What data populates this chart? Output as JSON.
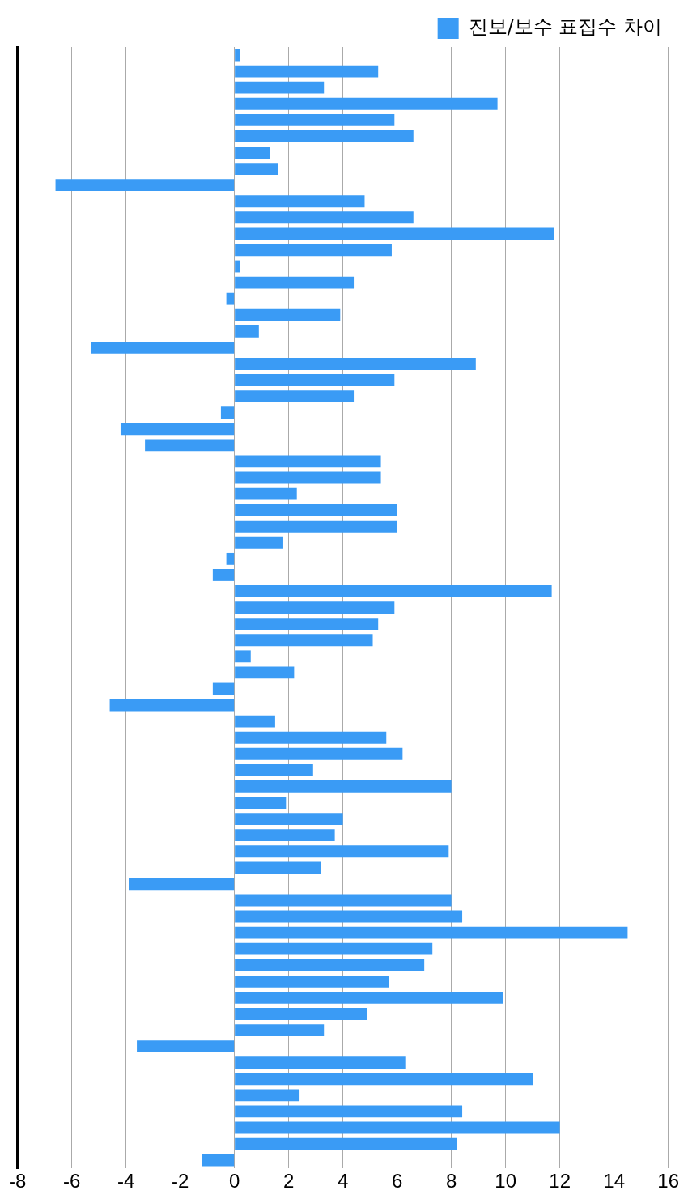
{
  "chart_data": {
    "type": "bar",
    "orientation": "horizontal",
    "categories": [
      null,
      null,
      null,
      null,
      null,
      null,
      null,
      null,
      null,
      null,
      null,
      null,
      null,
      null,
      null,
      null,
      null,
      null,
      null,
      null,
      null,
      null,
      null,
      null,
      null,
      null,
      null,
      null,
      null,
      null,
      null,
      null,
      null,
      null,
      null,
      null,
      null,
      null,
      null,
      null,
      null,
      null,
      null,
      null,
      null,
      null,
      null,
      null,
      null,
      null,
      null,
      null,
      null,
      null,
      null,
      null,
      null,
      null,
      null,
      null,
      null,
      null,
      null,
      null,
      null,
      null,
      null,
      null,
      null
    ],
    "series": [
      {
        "name": "진보/보수 표집수 차이",
        "color": "#3a9bf5",
        "values": [
          0.2,
          5.3,
          3.3,
          9.7,
          5.9,
          6.6,
          1.3,
          1.6,
          -6.6,
          4.8,
          6.6,
          11.8,
          5.8,
          0.2,
          4.4,
          -0.3,
          3.9,
          0.9,
          -5.3,
          8.9,
          5.9,
          4.4,
          -0.5,
          -4.2,
          -3.3,
          5.4,
          5.4,
          2.3,
          6.0,
          6.0,
          1.8,
          -0.3,
          -0.8,
          11.7,
          5.9,
          5.3,
          5.1,
          0.6,
          2.2,
          -0.8,
          -4.6,
          1.5,
          5.6,
          6.2,
          2.9,
          8.0,
          1.9,
          4.0,
          3.7,
          7.9,
          3.2,
          -3.9,
          8.0,
          8.4,
          14.5,
          7.3,
          7.0,
          5.7,
          9.9,
          4.9,
          3.3,
          -3.6,
          6.3,
          11.0,
          2.4,
          8.4,
          12.0,
          8.2,
          -1.2
        ]
      }
    ],
    "xlim": [
      -8,
      16
    ],
    "xticks": [
      -8,
      -6,
      -4,
      -2,
      0,
      2,
      4,
      6,
      8,
      10,
      12,
      14,
      16
    ],
    "grid": "x",
    "legend": "top right"
  }
}
